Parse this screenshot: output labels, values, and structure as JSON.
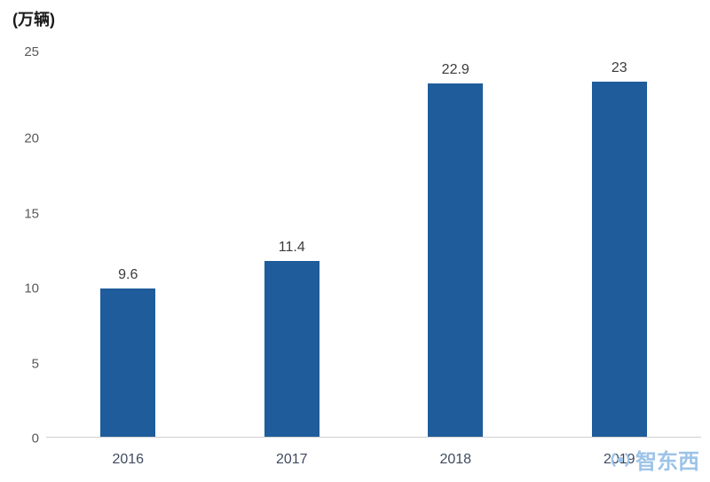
{
  "chart_data": {
    "type": "bar",
    "title": "",
    "ylabel": "(万辆)",
    "xlabel": "",
    "categories": [
      "2016",
      "2017",
      "2018",
      "2019"
    ],
    "values": [
      9.6,
      11.4,
      22.9,
      23
    ],
    "values_display": [
      "9.6",
      "11.4",
      "22.9",
      "23"
    ],
    "ylim": [
      0,
      25
    ],
    "yticks": [
      0,
      5,
      10,
      15,
      20,
      25
    ],
    "grid": "off",
    "legend": "none",
    "bar_color": "#1f5c9b",
    "axis_line_color": "#d0d0d0"
  },
  "watermark": {
    "text": "智东西"
  }
}
